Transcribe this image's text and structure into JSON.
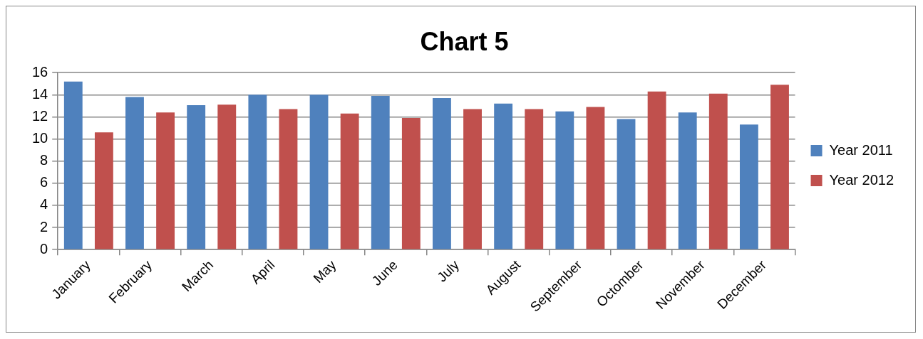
{
  "chart_data": {
    "type": "bar",
    "title": "Chart 5",
    "categories": [
      "January",
      "February",
      "March",
      "April",
      "May",
      "June",
      "July",
      "August",
      "September",
      "Octomber",
      "November",
      "December"
    ],
    "series": [
      {
        "name": "Year 2011",
        "color": "#4f81bd",
        "values": [
          15.2,
          13.8,
          13.05,
          14.0,
          14.0,
          13.9,
          13.7,
          13.2,
          12.5,
          11.8,
          12.4,
          11.3
        ]
      },
      {
        "name": "Year 2012",
        "color": "#c0504d",
        "values": [
          10.6,
          12.4,
          13.1,
          12.7,
          12.3,
          11.9,
          12.7,
          12.7,
          12.9,
          14.3,
          14.1,
          14.9
        ]
      }
    ],
    "ylim": [
      0,
      16
    ],
    "yticks": [
      0,
      2,
      4,
      6,
      8,
      10,
      12,
      14,
      16
    ],
    "grid": "y",
    "legend": "right"
  }
}
